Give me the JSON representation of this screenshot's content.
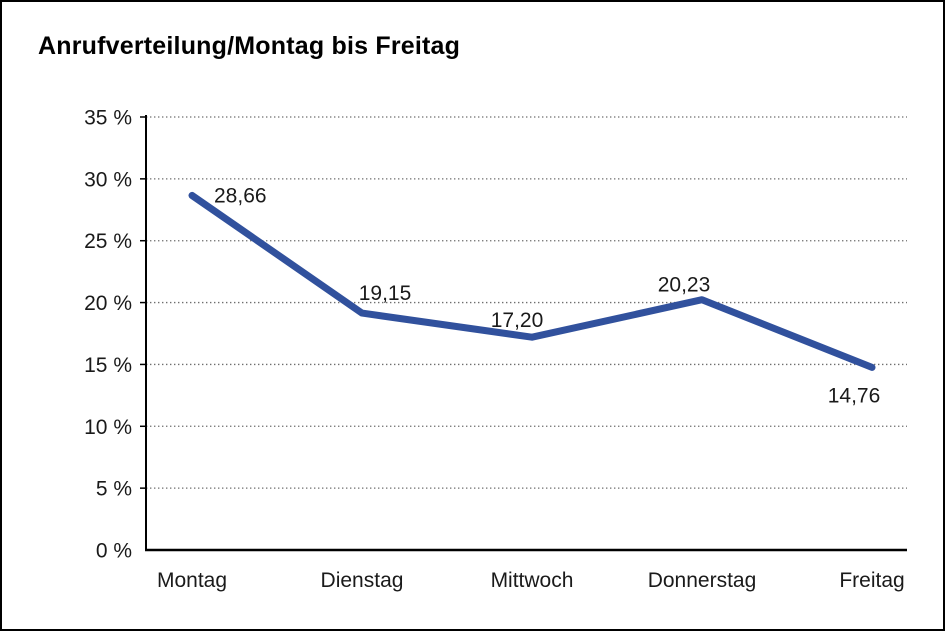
{
  "chart_data": {
    "type": "line",
    "title": "Anrufverteilung/Montag bis Freitag",
    "categories": [
      "Montag",
      "Dienstag",
      "Mittwoch",
      "Donnerstag",
      "Freitag"
    ],
    "values": [
      28.66,
      19.15,
      17.2,
      20.23,
      14.76
    ],
    "value_labels": [
      "28,66",
      "19,15",
      "17,20",
      "20,23",
      "14,76"
    ],
    "y_tick_labels": [
      "0 %",
      "5 %",
      "10 %",
      "15 %",
      "20 %",
      "25 %",
      "30 %",
      "35 %"
    ],
    "xlabel": "",
    "ylabel": "",
    "ylim": [
      0,
      35
    ],
    "y_tick_step": 5,
    "grid": "horizontal-dotted",
    "legend": "none",
    "line_color": "#31519d",
    "axis_color": "#000000",
    "grid_color": "#6e6e6e",
    "text_color": "#1a1a1a"
  }
}
